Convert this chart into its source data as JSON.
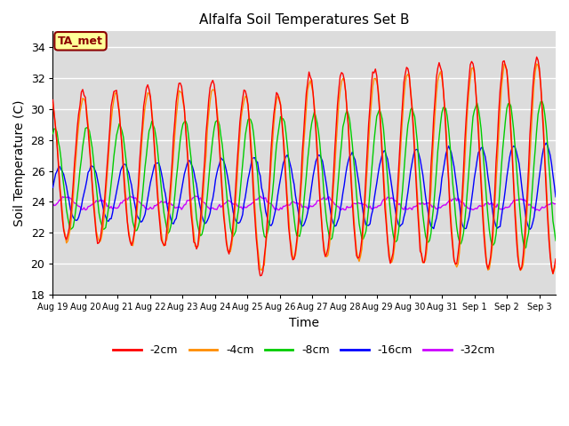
{
  "title": "Alfalfa Soil Temperatures Set B",
  "xlabel": "Time",
  "ylabel": "Soil Temperature (C)",
  "ylim": [
    18,
    35
  ],
  "yticks": [
    18,
    20,
    22,
    24,
    26,
    28,
    30,
    32,
    34
  ],
  "bg_color": "#dcdcdc",
  "grid_color": "white",
  "series_colors": {
    "-2cm": "#ff0000",
    "-4cm": "#ff8c00",
    "-8cm": "#00cc00",
    "-16cm": "#0000ff",
    "-32cm": "#cc00ff"
  },
  "x_tick_labels": [
    "Aug 19",
    "Aug 20",
    "Aug 21",
    "Aug 22",
    "Aug 23",
    "Aug 24",
    "Aug 25",
    "Aug 26",
    "Aug 27",
    "Aug 28",
    "Aug 29",
    "Aug 30",
    "Aug 31",
    "Sep 1",
    "Sep 2",
    "Sep 3"
  ],
  "annotation": "TA_met",
  "n_days": 15.5,
  "n_hours": 372
}
